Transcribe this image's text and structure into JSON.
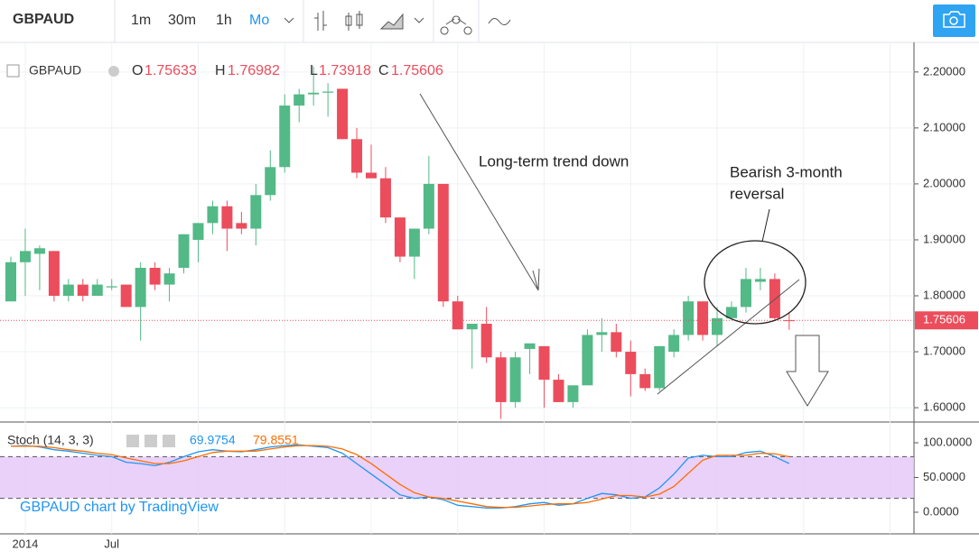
{
  "toolbar": {
    "symbol": "GBPAUD",
    "intervals": [
      "1m",
      "30m",
      "1h",
      "Mo"
    ]
  },
  "annotations": {
    "trend": "Long-term trend down",
    "reversal": [
      "Bearish 3-month",
      "reversal"
    ],
    "watermark": "GBPAUD chart by TradingView"
  },
  "chart_data": [
    {
      "type": "candlestick",
      "title": "GBPAUD",
      "ohlc_labels": [
        "O",
        "H",
        "L",
        "C"
      ],
      "categories": [
        null,
        "2014",
        null,
        null,
        null,
        null,
        null,
        "Jul",
        null,
        null,
        null,
        null,
        null,
        null,
        null,
        null,
        null,
        null,
        null,
        null,
        null,
        null,
        null,
        null,
        null,
        null,
        null,
        null,
        null,
        null,
        null,
        null,
        null,
        null,
        null,
        null,
        null,
        null,
        null,
        null,
        null,
        null,
        null,
        null,
        null,
        null,
        null,
        null,
        null,
        null,
        null,
        null,
        null,
        null,
        null
      ],
      "up_color": "#53b987",
      "down_color": "#eb4d5c",
      "series": [
        {
          "name": "GBPAUD",
          "open": [
            1.79,
            1.86,
            1.875,
            1.88,
            1.8,
            1.82,
            1.8,
            1.815,
            1.82,
            1.78,
            1.85,
            1.82,
            1.85,
            1.9,
            1.93,
            1.96,
            1.93,
            1.92,
            1.98,
            2.03,
            2.14,
            2.16,
            2.163,
            2.17,
            2.08,
            2.02,
            2.01,
            1.94,
            1.87,
            1.92,
            2.0,
            1.79,
            1.74,
            1.75,
            1.69,
            1.61,
            1.705,
            1.71,
            1.65,
            1.61,
            1.64,
            1.73,
            1.735,
            1.7,
            1.66,
            1.635,
            1.7,
            1.73,
            1.79,
            1.73,
            1.76,
            1.78,
            1.825,
            1.83,
            1.75633
          ],
          "high": [
            1.87,
            1.92,
            1.89,
            1.88,
            1.83,
            1.83,
            1.83,
            1.83,
            1.82,
            1.86,
            1.86,
            1.85,
            1.91,
            1.93,
            1.97,
            1.97,
            1.95,
            2.0,
            2.06,
            2.16,
            2.17,
            2.21,
            2.18,
            2.17,
            2.1,
            2.07,
            2.03,
            1.94,
            1.92,
            2.05,
            2.0,
            1.8,
            1.75,
            1.78,
            1.7,
            1.7,
            1.71,
            1.71,
            1.66,
            1.64,
            1.74,
            1.76,
            1.75,
            1.72,
            1.67,
            1.71,
            1.74,
            1.8,
            1.79,
            1.78,
            1.79,
            1.85,
            1.85,
            1.84,
            1.76982
          ],
          "low": [
            1.79,
            1.8,
            1.81,
            1.79,
            1.79,
            1.79,
            1.8,
            1.81,
            1.78,
            1.72,
            1.81,
            1.79,
            1.84,
            1.86,
            1.91,
            1.88,
            1.91,
            1.89,
            1.97,
            2.02,
            2.11,
            2.14,
            2.12,
            2.08,
            2.01,
            2.01,
            1.93,
            1.86,
            1.83,
            1.91,
            1.78,
            1.74,
            1.67,
            1.68,
            1.58,
            1.6,
            1.66,
            1.6,
            1.61,
            1.6,
            1.64,
            1.7,
            1.69,
            1.62,
            1.63,
            1.63,
            1.69,
            1.72,
            1.72,
            1.71,
            1.76,
            1.77,
            1.81,
            1.755,
            1.73918
          ],
          "close": [
            1.86,
            1.88,
            1.885,
            1.8,
            1.82,
            1.8,
            1.82,
            1.817,
            1.78,
            1.85,
            1.82,
            1.84,
            1.91,
            1.93,
            1.96,
            1.92,
            1.92,
            1.98,
            2.03,
            2.14,
            2.16,
            2.163,
            2.165,
            2.08,
            2.02,
            2.01,
            1.94,
            1.87,
            1.92,
            2.0,
            1.79,
            1.74,
            1.75,
            1.69,
            1.61,
            1.69,
            1.715,
            1.65,
            1.61,
            1.64,
            1.73,
            1.735,
            1.7,
            1.66,
            1.635,
            1.71,
            1.73,
            1.79,
            1.73,
            1.76,
            1.78,
            1.83,
            1.83,
            1.76,
            1.75606
          ]
        }
      ],
      "ylim": [
        1.576,
        2.24
      ],
      "yticks": [
        {
          "value": 1.6,
          "label": "1.60000"
        },
        {
          "value": 1.7,
          "label": "1.70000"
        },
        {
          "value": 1.8,
          "label": "1.80000"
        },
        {
          "value": 1.9,
          "label": "1.90000"
        },
        {
          "value": 2.0,
          "label": "2.00000"
        },
        {
          "value": 2.1,
          "label": "2.10000"
        },
        {
          "value": 2.2,
          "label": "2.20000"
        }
      ],
      "last_price_label": "1.75606",
      "grid": true
    },
    {
      "type": "line",
      "title": "Stoch (14, 3, 3)",
      "series": [
        {
          "name": "%K",
          "color": "#2196f3",
          "value_label": "69.9754",
          "values": [
            95,
            96,
            94,
            90,
            88,
            85,
            82,
            80,
            72,
            70,
            67,
            72,
            80,
            87,
            90,
            88,
            87,
            90,
            94,
            96,
            97,
            95,
            93,
            85,
            70,
            55,
            40,
            25,
            20,
            22,
            18,
            10,
            8,
            6,
            6,
            8,
            12,
            14,
            10,
            12,
            20,
            27,
            25,
            20,
            22,
            35,
            55,
            78,
            82,
            80,
            80,
            86,
            88,
            80,
            69.9754
          ]
        },
        {
          "name": "%D",
          "color": "#ff6d00",
          "value_label": "79.8551",
          "values": [
            95,
            95,
            95,
            93,
            90,
            88,
            85,
            83,
            78,
            74,
            70,
            70,
            74,
            80,
            86,
            88,
            88,
            88,
            91,
            94,
            96,
            96,
            95,
            91,
            83,
            70,
            55,
            40,
            28,
            22,
            20,
            16,
            12,
            8,
            7,
            7,
            9,
            11,
            12,
            12,
            14,
            19,
            24,
            24,
            22,
            26,
            37,
            56,
            75,
            82,
            82,
            82,
            85,
            84,
            79.8551
          ]
        }
      ],
      "band": [
        20,
        80
      ],
      "band_color": "#e3c6f7",
      "ylim": [
        -28.6,
        127.3
      ],
      "yticks": [
        {
          "value": 0,
          "label": "0.0000"
        },
        {
          "value": 50,
          "label": "50.0000"
        },
        {
          "value": 100,
          "label": "100.0000"
        }
      ]
    }
  ]
}
